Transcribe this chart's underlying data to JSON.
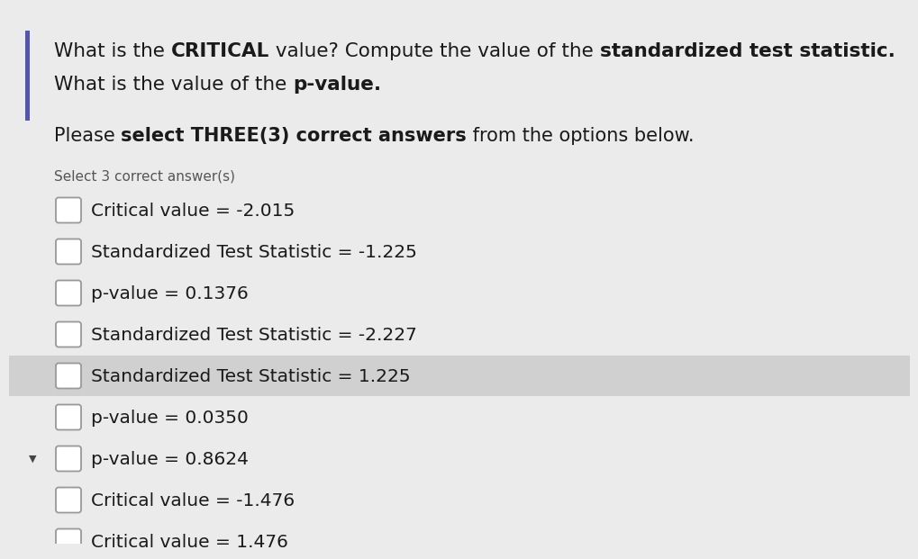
{
  "bg_color": "#ebebeb",
  "highlight_color": "#d0d0d0",
  "text_color": "#1a1a1a",
  "gray_text_color": "#555555",
  "left_bar_color": "#5555aa",
  "checkbox_edge_color": "#999999",
  "checkbox_face_color": "#ffffff",
  "arrow_color": "#444444",
  "line1_parts": [
    {
      "text": "What is the ",
      "bold": false
    },
    {
      "text": "CRITICAL",
      "bold": true
    },
    {
      "text": " value? Compute the value of the ",
      "bold": false
    },
    {
      "text": "standardized test statistic.",
      "bold": true
    }
  ],
  "line2_parts": [
    {
      "text": "What is the value of the ",
      "bold": false
    },
    {
      "text": "p-value.",
      "bold": true
    }
  ],
  "subtitle_parts": [
    {
      "text": "Please ",
      "bold": false
    },
    {
      "text": "select THREE(3) correct answers",
      "bold": true
    },
    {
      "text": " from the options below.",
      "bold": false
    }
  ],
  "select_text": "Select 3 correct answer(s)",
  "options": [
    "Critical value = -2.015",
    "Standardized Test Statistic = -1.225",
    "p-value = 0.1376",
    "Standardized Test Statistic = -2.227",
    "Standardized Test Statistic = 1.225",
    "p-value = 0.0350",
    "p-value = 0.8624",
    "Critical value = -1.476",
    "Critical value = 1.476"
  ],
  "highlighted_option_index": 4,
  "small_arrow_index": 6,
  "title_fontsize": 15.5,
  "subtitle_fontsize": 15.0,
  "select_fontsize": 11.0,
  "option_fontsize": 14.5
}
